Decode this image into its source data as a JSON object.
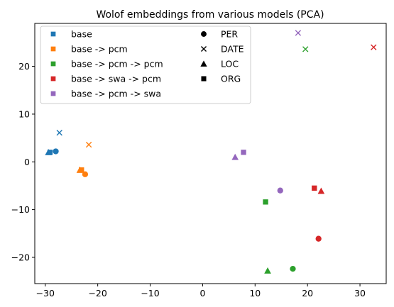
{
  "chart_data": {
    "type": "scatter",
    "title": "Wolof embeddings from various models (PCA)",
    "xlabel": "",
    "ylabel": "",
    "xlim": [
      -32,
      35
    ],
    "ylim": [
      -25.5,
      29
    ],
    "xticks": [
      -30,
      -20,
      -10,
      0,
      10,
      20,
      30
    ],
    "yticks": [
      -20,
      -10,
      0,
      10,
      20
    ],
    "grid": false,
    "legend_placement": "top-left",
    "models": [
      {
        "name": "base",
        "color": "#1f77b4"
      },
      {
        "name": "base -> pcm",
        "color": "#ff7f0e"
      },
      {
        "name": "base -> pcm -> pcm",
        "color": "#2ca02c"
      },
      {
        "name": "base -> swa -> pcm",
        "color": "#d62728"
      },
      {
        "name": "base -> pcm -> swa",
        "color": "#9467bd"
      }
    ],
    "entity_types": [
      {
        "name": "PER",
        "marker": "circle"
      },
      {
        "name": "DATE",
        "marker": "x"
      },
      {
        "name": "LOC",
        "marker": "triangle"
      },
      {
        "name": "ORG",
        "marker": "square"
      }
    ],
    "points": [
      {
        "model": "base",
        "type": "PER",
        "x": -28,
        "y": 2.2
      },
      {
        "model": "base",
        "type": "DATE",
        "x": -27.3,
        "y": 6.1
      },
      {
        "model": "base",
        "type": "LOC",
        "x": -29.4,
        "y": 2.0
      },
      {
        "model": "base",
        "type": "ORG",
        "x": -29.1,
        "y": 2.0
      },
      {
        "model": "base -> pcm",
        "type": "PER",
        "x": -22.4,
        "y": -2.6
      },
      {
        "model": "base -> pcm",
        "type": "DATE",
        "x": -21.7,
        "y": 3.6
      },
      {
        "model": "base -> pcm",
        "type": "LOC",
        "x": -23.4,
        "y": -1.7
      },
      {
        "model": "base -> pcm",
        "type": "ORG",
        "x": -23.1,
        "y": -1.7
      },
      {
        "model": "base -> pcm -> pcm",
        "type": "PER",
        "x": 17.2,
        "y": -22.4
      },
      {
        "model": "base -> pcm -> pcm",
        "type": "DATE",
        "x": 19.6,
        "y": 23.6
      },
      {
        "model": "base -> pcm -> pcm",
        "type": "LOC",
        "x": 12.4,
        "y": -22.8
      },
      {
        "model": "base -> pcm -> pcm",
        "type": "ORG",
        "x": 12.0,
        "y": -8.4
      },
      {
        "model": "base -> swa -> pcm",
        "type": "PER",
        "x": 22.1,
        "y": -16.1
      },
      {
        "model": "base -> swa -> pcm",
        "type": "DATE",
        "x": 32.6,
        "y": 24.0
      },
      {
        "model": "base -> swa -> pcm",
        "type": "LOC",
        "x": 22.6,
        "y": -6.1
      },
      {
        "model": "base -> swa -> pcm",
        "type": "ORG",
        "x": 21.3,
        "y": -5.5
      },
      {
        "model": "base -> pcm -> swa",
        "type": "PER",
        "x": 14.8,
        "y": -6.0
      },
      {
        "model": "base -> pcm -> swa",
        "type": "DATE",
        "x": 18.2,
        "y": 27.0
      },
      {
        "model": "base -> pcm -> swa",
        "type": "LOC",
        "x": 6.2,
        "y": 1.0
      },
      {
        "model": "base -> pcm -> swa",
        "type": "ORG",
        "x": 7.8,
        "y": 2.0
      }
    ]
  }
}
